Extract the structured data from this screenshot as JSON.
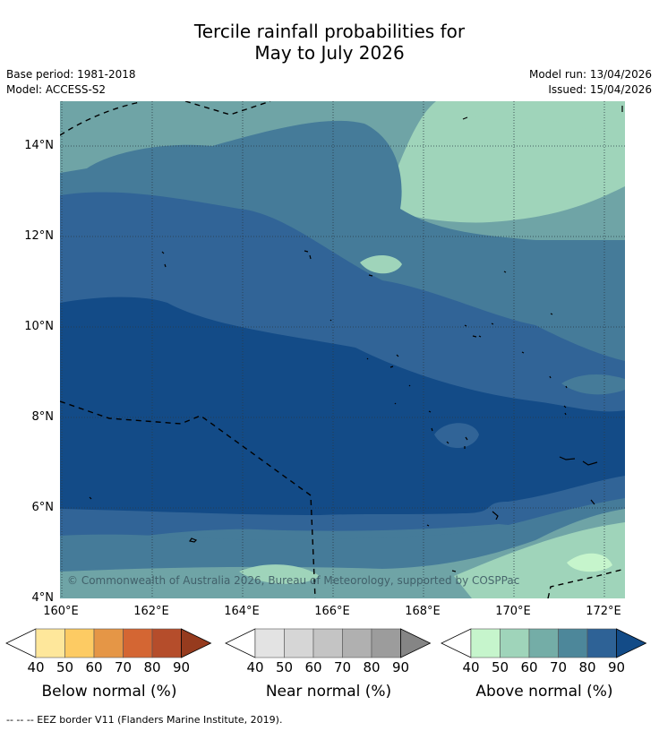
{
  "title": {
    "line1": "Tercile rainfall probabilities for",
    "line2": "May to July 2026"
  },
  "meta": {
    "base_period": "Base period: 1981-2018",
    "model": "Model: ACCESS-S2",
    "model_run": "Model run: 13/04/2026",
    "issued": "Issued: 15/04/2026"
  },
  "axes": {
    "lat_ticks": [
      "14°N",
      "12°N",
      "10°N",
      "8°N",
      "6°N",
      "4°N"
    ],
    "lon_ticks": [
      "160°E",
      "162°E",
      "164°E",
      "166°E",
      "168°E",
      "170°E",
      "172°E"
    ]
  },
  "copyright": "© Commonwealth of Australia 2026, Bureau of Meteorology, supported by COSPPac",
  "legends": [
    {
      "caption": "Below normal (%)",
      "ticks": [
        "40",
        "50",
        "60",
        "70",
        "80",
        "90"
      ],
      "colors": [
        "#ffffff",
        "#fee79b",
        "#fdcb63",
        "#e59646",
        "#d46633",
        "#b54d2b",
        "#963b1e"
      ]
    },
    {
      "caption": "Near normal (%)",
      "ticks": [
        "40",
        "50",
        "60",
        "70",
        "80",
        "90"
      ],
      "colors": [
        "#ffffff",
        "#e3e3e3",
        "#d6d6d6",
        "#c4c4c4",
        "#b0b0b0",
        "#9c9c9c",
        "#858585"
      ]
    },
    {
      "caption": "Above normal (%)",
      "ticks": [
        "40",
        "50",
        "60",
        "70",
        "80",
        "90"
      ],
      "colors": [
        "#ffffff",
        "#c6f5cc",
        "#9fd4ba",
        "#74ada7",
        "#4d879a",
        "#2e6296",
        "#134b87"
      ]
    }
  ],
  "map_colors": {
    "c50": "#c6f5cc",
    "c60": "#9fd4ba",
    "c70": "#6fa4a6",
    "c75": "#457b99",
    "c80": "#316497",
    "c90": "#134b87",
    "grid": "#2a3a44",
    "eez": "#000000"
  },
  "footer": "--  --  -- EEZ border V11 (Flanders Marine Institute, 2019)."
}
